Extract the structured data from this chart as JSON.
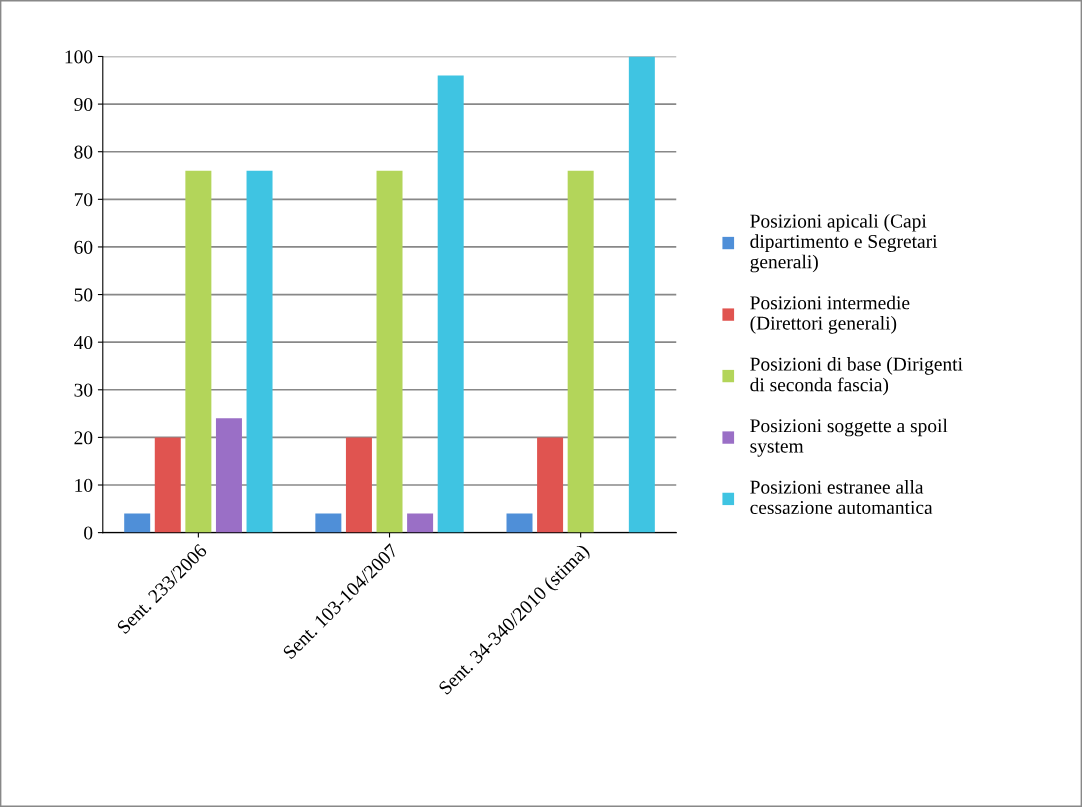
{
  "chart_data": {
    "type": "bar",
    "categories": [
      "Sent. 233/2006",
      "Sent. 103-104/2007",
      "Sent. 34-340/2010 (stima)"
    ],
    "series": [
      {
        "name": "Posizioni apicali (Capi\ndipartimento e Segretari\ngenerali)",
        "color": "#4f8fd8",
        "values": [
          4,
          4,
          4
        ]
      },
      {
        "name": "Posizioni intermedie\n(Direttori generali)",
        "color": "#e05450",
        "values": [
          20,
          20,
          20
        ]
      },
      {
        "name": "Posizioni di base (Dirigenti\ndi seconda fascia)",
        "color": "#b3d55a",
        "values": [
          76,
          76,
          76
        ]
      },
      {
        "name": "Posizioni soggette a spoil\nsystem",
        "color": "#9a6fc6",
        "values": [
          24,
          4,
          0
        ]
      },
      {
        "name": "Posizioni estranee alla\ncessazione automantica",
        "color": "#3fc4e2",
        "values": [
          76,
          96,
          100
        ]
      }
    ],
    "ylim": [
      0,
      100
    ],
    "yticks": [
      0,
      10,
      20,
      30,
      40,
      50,
      60,
      70,
      80,
      90,
      100
    ],
    "grid": "y",
    "legend": "right"
  }
}
